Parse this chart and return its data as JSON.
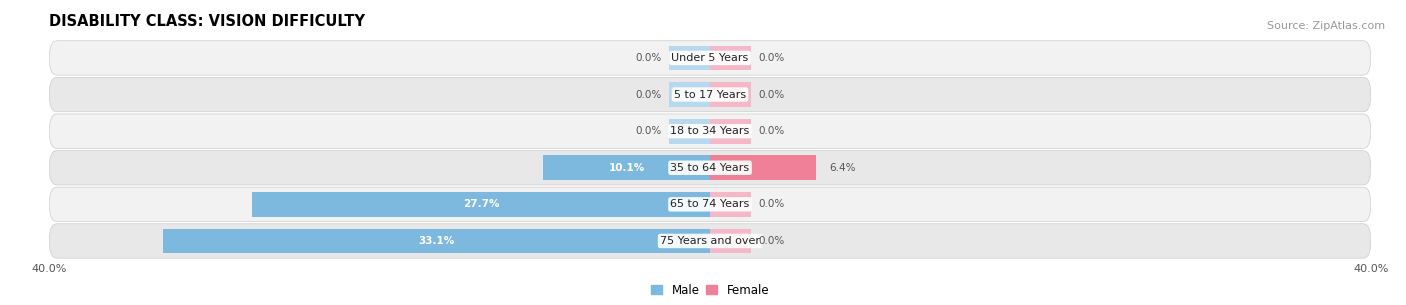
{
  "title": "DISABILITY CLASS: VISION DIFFICULTY",
  "source": "Source: ZipAtlas.com",
  "categories": [
    "Under 5 Years",
    "5 to 17 Years",
    "18 to 34 Years",
    "35 to 64 Years",
    "65 to 74 Years",
    "75 Years and over"
  ],
  "male_values": [
    0.0,
    0.0,
    0.0,
    10.1,
    27.7,
    33.1
  ],
  "female_values": [
    0.0,
    0.0,
    0.0,
    6.4,
    0.0,
    0.0
  ],
  "male_color": "#7db8df",
  "female_color": "#f08098",
  "male_color_light": "#b8d8ef",
  "female_color_light": "#f4b8c8",
  "row_colors": [
    "#f2f2f2",
    "#e8e8e8"
  ],
  "axis_max": 40.0,
  "legend_male": "Male",
  "legend_female": "Female",
  "title_fontsize": 10.5,
  "source_fontsize": 8,
  "bar_height": 0.68,
  "background_color": "#ffffff",
  "stub_size": 2.5
}
